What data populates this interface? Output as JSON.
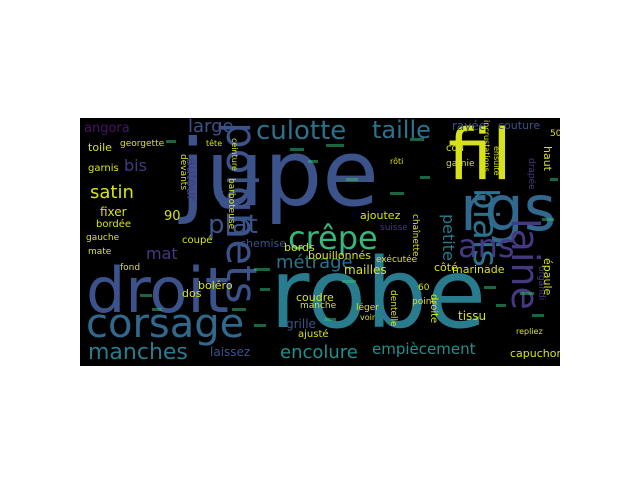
{
  "colors": {
    "background": "#000000",
    "page": "#ffffff",
    "purple": "#443983",
    "indigo": "#3b528b",
    "blue": "#31688e",
    "teal": "#287c8e",
    "cyan": "#21908d",
    "green": "#35b779",
    "lime": "#8fd744",
    "yellow": "#d8e219",
    "violet": "#481467"
  },
  "words": {
    "jupe": "jupe",
    "robe": "robe",
    "droit": "droit",
    "fil": "fil",
    "rgs": "rgs",
    "corsage": "corsage",
    "poignets": "poignets",
    "laine": "laine",
    "biais": "biais",
    "crepe": "crêpe",
    "culotte": "culotte",
    "taille": "taille",
    "manches": "manches",
    "ans": "ans",
    "plat": "plat",
    "large": "large",
    "metrage": "métrage",
    "encolure": "encolure",
    "empiecement": "empiècement",
    "satin": "satin",
    "angora": "angora",
    "petite": "petite",
    "bis": "bis",
    "mat": "mat",
    "capuchon": "capuchon",
    "autour": "autour",
    "couture": "couture",
    "rayee": "rayée",
    "toile": "toile",
    "fixer": "fixer",
    "chemise": "chemise",
    "grille": "grille",
    "manche": "manche",
    "laissez": "laissez",
    "mailles": "mailles",
    "marinade": "marinade",
    "tissu": "tissu",
    "ajoutez": "ajoutez",
    "bouillonnes": "bouillonnés",
    "coudre": "coudre",
    "haut": "haut",
    "epaule": "épaule",
    "cote": "côté",
    "point": "point",
    "droite": "droite",
    "bords": "bords",
    "bolero": "boléro",
    "dos": "dos",
    "coupe": "coupé",
    "georgette": "georgette",
    "garnis": "garnis",
    "bordee": "bordée",
    "gauche": "gauche",
    "mate": "mate",
    "fond": "fond",
    "devants": "devants",
    "barboteuse": "barboteuse",
    "ajuste": "ajusté",
    "dentelle": "dentelle",
    "leger": "léger",
    "executee": "exécutée",
    "cou": "cou",
    "garnie": "garnie",
    "chainette": "chaînette",
    "incrustations": "incrustations",
    "ensuite": "ensuite",
    "drapee": "drapée",
    "organdi": "organdi",
    "repliez": "repliez",
    "n90": "90",
    "n60": "60",
    "n50": "50",
    "suisse": "suisse",
    "tete": "tête",
    "roti": "rôti",
    "ceinture": "ceinture",
    "voir": "voir"
  }
}
